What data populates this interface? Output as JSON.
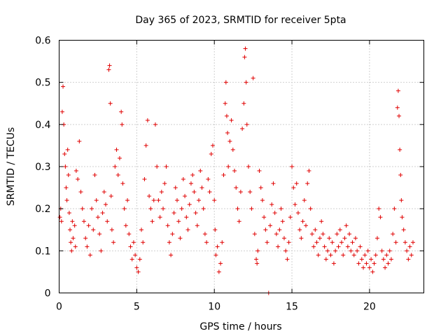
{
  "chart_data": {
    "type": "scatter",
    "title": "Day 365 of 2023, SRMTID for receiver 5pta",
    "xlabel": "GPS time / hours",
    "ylabel": "SRMTID / TECUs",
    "xlim": [
      0,
      23.5
    ],
    "ylim": [
      0,
      0.6
    ],
    "xticks": [
      0,
      5,
      10,
      15,
      20
    ],
    "yticks": [
      0,
      0.1,
      0.2,
      0.3,
      0.4,
      0.5,
      0.6
    ],
    "xtick_labels": [
      "0",
      "5",
      "10",
      "15",
      "20"
    ],
    "ytick_labels": [
      "0",
      "0.1",
      "0.2",
      "0.3",
      "0.4",
      "0.5",
      "0.6"
    ],
    "grid": true,
    "marker": "+",
    "color": "#e00000",
    "series": [
      {
        "name": "SRMTID",
        "points": [
          [
            0.05,
            0.18
          ],
          [
            0.1,
            0.2
          ],
          [
            0.15,
            0.17
          ],
          [
            0.2,
            0.43
          ],
          [
            0.25,
            0.49
          ],
          [
            0.3,
            0.4
          ],
          [
            0.35,
            0.33
          ],
          [
            0.4,
            0.3
          ],
          [
            0.45,
            0.25
          ],
          [
            0.5,
            0.22
          ],
          [
            0.55,
            0.34
          ],
          [
            0.6,
            0.28
          ],
          [
            0.65,
            0.19
          ],
          [
            0.7,
            0.15
          ],
          [
            0.75,
            0.12
          ],
          [
            0.8,
            0.1
          ],
          [
            0.85,
            0.17
          ],
          [
            0.9,
            0.13
          ],
          [
            1.0,
            0.16
          ],
          [
            1.05,
            0.11
          ],
          [
            1.1,
            0.29
          ],
          [
            1.2,
            0.27
          ],
          [
            1.3,
            0.36
          ],
          [
            1.4,
            0.24
          ],
          [
            1.5,
            0.2
          ],
          [
            1.6,
            0.17
          ],
          [
            1.7,
            0.13
          ],
          [
            1.8,
            0.11
          ],
          [
            1.9,
            0.16
          ],
          [
            2.0,
            0.09
          ],
          [
            2.1,
            0.2
          ],
          [
            2.2,
            0.15
          ],
          [
            2.3,
            0.28
          ],
          [
            2.4,
            0.22
          ],
          [
            2.5,
            0.18
          ],
          [
            2.6,
            0.14
          ],
          [
            2.7,
            0.1
          ],
          [
            2.8,
            0.19
          ],
          [
            2.9,
            0.24
          ],
          [
            3.0,
            0.21
          ],
          [
            3.1,
            0.17
          ],
          [
            3.2,
            0.53
          ],
          [
            3.25,
            0.54
          ],
          [
            3.3,
            0.45
          ],
          [
            3.35,
            0.23
          ],
          [
            3.4,
            0.15
          ],
          [
            3.5,
            0.12
          ],
          [
            3.6,
            0.3
          ],
          [
            3.7,
            0.34
          ],
          [
            3.8,
            0.28
          ],
          [
            3.9,
            0.32
          ],
          [
            4.0,
            0.43
          ],
          [
            4.05,
            0.4
          ],
          [
            4.1,
            0.26
          ],
          [
            4.2,
            0.2
          ],
          [
            4.3,
            0.16
          ],
          [
            4.4,
            0.22
          ],
          [
            4.5,
            0.14
          ],
          [
            4.6,
            0.11
          ],
          [
            4.7,
            0.08
          ],
          [
            4.8,
            0.12
          ],
          [
            4.9,
            0.09
          ],
          [
            5.0,
            0.06
          ],
          [
            5.1,
            0.05
          ],
          [
            5.2,
            0.08
          ],
          [
            5.3,
            0.15
          ],
          [
            5.4,
            0.12
          ],
          [
            5.5,
            0.27
          ],
          [
            5.6,
            0.35
          ],
          [
            5.7,
            0.41
          ],
          [
            5.8,
            0.23
          ],
          [
            5.9,
            0.2
          ],
          [
            6.0,
            0.17
          ],
          [
            6.1,
            0.22
          ],
          [
            6.2,
            0.4
          ],
          [
            6.3,
            0.3
          ],
          [
            6.4,
            0.22
          ],
          [
            6.5,
            0.18
          ],
          [
            6.6,
            0.24
          ],
          [
            6.7,
            0.2
          ],
          [
            6.8,
            0.26
          ],
          [
            6.9,
            0.3
          ],
          [
            7.0,
            0.16
          ],
          [
            7.1,
            0.12
          ],
          [
            7.2,
            0.09
          ],
          [
            7.3,
            0.14
          ],
          [
            7.4,
            0.19
          ],
          [
            7.5,
            0.25
          ],
          [
            7.6,
            0.22
          ],
          [
            7.7,
            0.17
          ],
          [
            7.8,
            0.13
          ],
          [
            7.9,
            0.2
          ],
          [
            8.0,
            0.27
          ],
          [
            8.1,
            0.23
          ],
          [
            8.2,
            0.18
          ],
          [
            8.3,
            0.15
          ],
          [
            8.4,
            0.21
          ],
          [
            8.5,
            0.26
          ],
          [
            8.6,
            0.28
          ],
          [
            8.7,
            0.24
          ],
          [
            8.8,
            0.19
          ],
          [
            8.9,
            0.16
          ],
          [
            9.0,
            0.22
          ],
          [
            9.1,
            0.29
          ],
          [
            9.2,
            0.25
          ],
          [
            9.3,
            0.2
          ],
          [
            9.4,
            0.14
          ],
          [
            9.5,
            0.12
          ],
          [
            9.6,
            0.27
          ],
          [
            9.7,
            0.24
          ],
          [
            9.8,
            0.33
          ],
          [
            9.9,
            0.35
          ],
          [
            10.0,
            0.22
          ],
          [
            10.05,
            0.15
          ],
          [
            10.1,
            0.09
          ],
          [
            10.2,
            0.11
          ],
          [
            10.3,
            0.05
          ],
          [
            10.4,
            0.07
          ],
          [
            10.5,
            0.12
          ],
          [
            10.6,
            0.28
          ],
          [
            10.7,
            0.45
          ],
          [
            10.75,
            0.5
          ],
          [
            10.8,
            0.42
          ],
          [
            10.85,
            0.38
          ],
          [
            10.9,
            0.3
          ],
          [
            11.0,
            0.36
          ],
          [
            11.1,
            0.41
          ],
          [
            11.2,
            0.34
          ],
          [
            11.3,
            0.29
          ],
          [
            11.4,
            0.25
          ],
          [
            11.5,
            0.2
          ],
          [
            11.6,
            0.17
          ],
          [
            11.7,
            0.24
          ],
          [
            11.8,
            0.39
          ],
          [
            11.9,
            0.45
          ],
          [
            11.95,
            0.56
          ],
          [
            12.0,
            0.58
          ],
          [
            12.05,
            0.5
          ],
          [
            12.1,
            0.4
          ],
          [
            12.2,
            0.3
          ],
          [
            12.3,
            0.24
          ],
          [
            12.4,
            0.2
          ],
          [
            12.5,
            0.51
          ],
          [
            12.6,
            0.14
          ],
          [
            12.7,
            0.08
          ],
          [
            12.75,
            0.07
          ],
          [
            12.8,
            0.1
          ],
          [
            12.9,
            0.29
          ],
          [
            13.0,
            0.25
          ],
          [
            13.1,
            0.22
          ],
          [
            13.2,
            0.18
          ],
          [
            13.3,
            0.15
          ],
          [
            13.4,
            0.12
          ],
          [
            13.5,
            0.0
          ],
          [
            13.6,
            0.16
          ],
          [
            13.7,
            0.21
          ],
          [
            13.8,
            0.26
          ],
          [
            13.9,
            0.19
          ],
          [
            14.0,
            0.14
          ],
          [
            14.1,
            0.11
          ],
          [
            14.2,
            0.15
          ],
          [
            14.3,
            0.2
          ],
          [
            14.4,
            0.17
          ],
          [
            14.5,
            0.13
          ],
          [
            14.6,
            0.1
          ],
          [
            14.7,
            0.08
          ],
          [
            14.8,
            0.12
          ],
          [
            14.9,
            0.18
          ],
          [
            15.0,
            0.3
          ],
          [
            15.1,
            0.25
          ],
          [
            15.2,
            0.21
          ],
          [
            15.3,
            0.26
          ],
          [
            15.4,
            0.19
          ],
          [
            15.5,
            0.15
          ],
          [
            15.6,
            0.13
          ],
          [
            15.7,
            0.17
          ],
          [
            15.8,
            0.22
          ],
          [
            15.9,
            0.16
          ],
          [
            16.0,
            0.26
          ],
          [
            16.1,
            0.29
          ],
          [
            16.2,
            0.2
          ],
          [
            16.3,
            0.14
          ],
          [
            16.4,
            0.11
          ],
          [
            16.5,
            0.15
          ],
          [
            16.6,
            0.12
          ],
          [
            16.7,
            0.09
          ],
          [
            16.8,
            0.13
          ],
          [
            16.9,
            0.17
          ],
          [
            17.0,
            0.14
          ],
          [
            17.1,
            0.11
          ],
          [
            17.2,
            0.08
          ],
          [
            17.3,
            0.1
          ],
          [
            17.4,
            0.13
          ],
          [
            17.5,
            0.09
          ],
          [
            17.6,
            0.12
          ],
          [
            17.7,
            0.07
          ],
          [
            17.8,
            0.1
          ],
          [
            17.9,
            0.14
          ],
          [
            18.0,
            0.11
          ],
          [
            18.1,
            0.15
          ],
          [
            18.2,
            0.12
          ],
          [
            18.3,
            0.09
          ],
          [
            18.4,
            0.13
          ],
          [
            18.5,
            0.16
          ],
          [
            18.6,
            0.11
          ],
          [
            18.7,
            0.14
          ],
          [
            18.8,
            0.1
          ],
          [
            18.9,
            0.12
          ],
          [
            19.0,
            0.09
          ],
          [
            19.1,
            0.13
          ],
          [
            19.2,
            0.1
          ],
          [
            19.3,
            0.07
          ],
          [
            19.4,
            0.11
          ],
          [
            19.5,
            0.08
          ],
          [
            19.6,
            0.06
          ],
          [
            19.7,
            0.09
          ],
          [
            19.8,
            0.07
          ],
          [
            19.9,
            0.1
          ],
          [
            20.0,
            0.06
          ],
          [
            20.1,
            0.08
          ],
          [
            20.2,
            0.05
          ],
          [
            20.3,
            0.07
          ],
          [
            20.4,
            0.09
          ],
          [
            20.5,
            0.13
          ],
          [
            20.6,
            0.2
          ],
          [
            20.7,
            0.18
          ],
          [
            20.8,
            0.1
          ],
          [
            20.9,
            0.08
          ],
          [
            21.0,
            0.06
          ],
          [
            21.1,
            0.09
          ],
          [
            21.2,
            0.07
          ],
          [
            21.3,
            0.1
          ],
          [
            21.4,
            0.08
          ],
          [
            21.5,
            0.14
          ],
          [
            21.6,
            0.2
          ],
          [
            21.7,
            0.12
          ],
          [
            21.8,
            0.44
          ],
          [
            21.85,
            0.48
          ],
          [
            21.9,
            0.42
          ],
          [
            21.95,
            0.34
          ],
          [
            22.0,
            0.28
          ],
          [
            22.05,
            0.22
          ],
          [
            22.1,
            0.18
          ],
          [
            22.2,
            0.15
          ],
          [
            22.3,
            0.12
          ],
          [
            22.4,
            0.1
          ],
          [
            22.5,
            0.08
          ],
          [
            22.6,
            0.11
          ],
          [
            22.7,
            0.09
          ],
          [
            22.8,
            0.12
          ]
        ]
      }
    ]
  }
}
